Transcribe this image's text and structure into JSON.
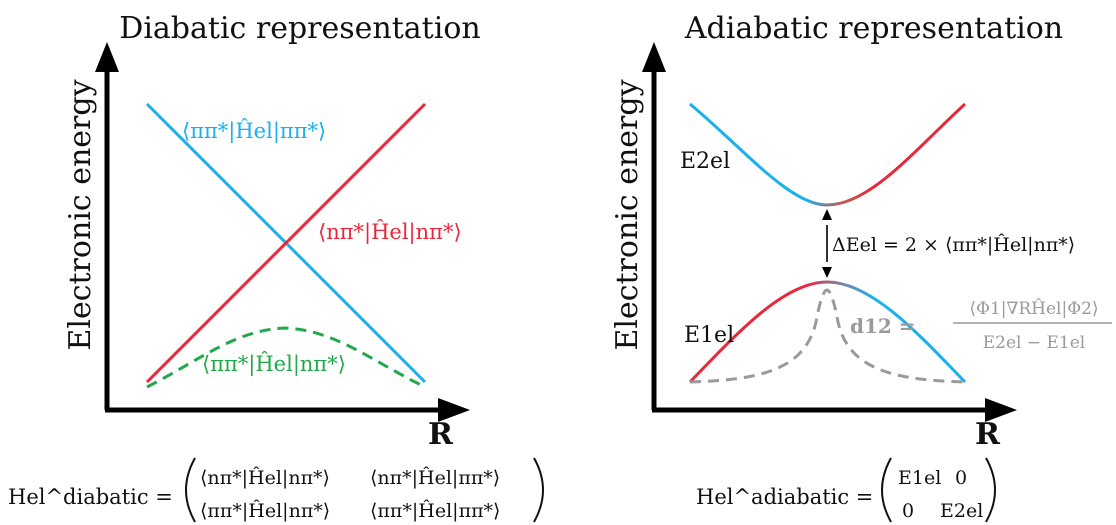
{
  "diabatic": {
    "title": "Diabatic representation",
    "ylabel": "Electronic energy",
    "xlabel": "R",
    "labels": {
      "pipi": "⟨ππ*|Ĥel|ππ*⟩",
      "npi": "⟨nπ*|Ĥel|nπ*⟩",
      "coupling": "⟨ππ*|Ĥel|nπ*⟩"
    },
    "matrix": {
      "lhs": "Hel^diabatic =",
      "m11": "⟨nπ*|Ĥel|nπ*⟩",
      "m12": "⟨nπ*|Ĥel|ππ*⟩",
      "m21": "⟨ππ*|Ĥel|nπ*⟩",
      "m22": "⟨ππ*|Ĥel|ππ*⟩"
    }
  },
  "adiabatic": {
    "title": "Adiabatic representation",
    "ylabel": "Electronic energy",
    "xlabel": "R",
    "labels": {
      "E2": "E2el",
      "E1": "E1el",
      "gap": "ΔEel = 2 × ⟨ππ*|Ĥel|nπ*⟩",
      "d12_lhs": "d12 =",
      "d12_num": "⟨Φ1|∇RĤel|Φ2⟩",
      "d12_den": "E2el − E1el"
    },
    "matrix": {
      "lhs": "Hel^adiabatic =",
      "m11": "E1el",
      "m12": "0",
      "m21": "0",
      "m22": "E2el"
    }
  },
  "colors": {
    "blue": "#1ab0ee",
    "red": "#e8283a",
    "green": "#22a84a",
    "grey": "#9a9a9a",
    "black": "#000000"
  }
}
